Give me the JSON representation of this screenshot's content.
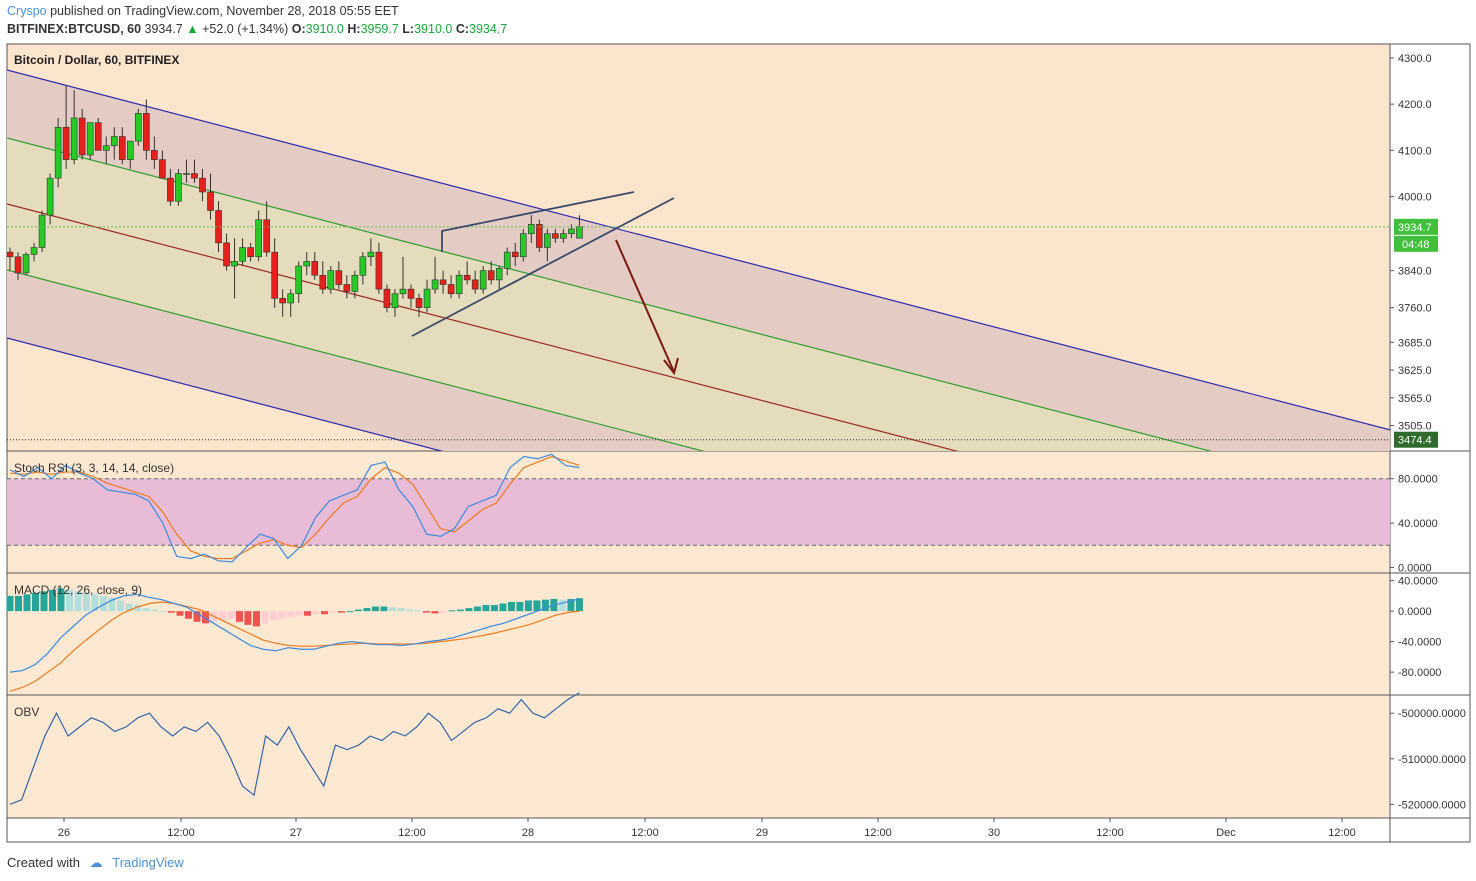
{
  "header": {
    "author": "Cryspo",
    "published_text": "published on TradingView.com, November 28, 2018 05:55 EET",
    "symbol": "BITFINEX:BTCUSD, 60",
    "last": "3934.7",
    "change": "+52.0 (+1.34%)",
    "o_label": "O:",
    "o_value": "3910.0",
    "h_label": "H:",
    "h_value": "3959.7",
    "l_label": "L:",
    "l_value": "3910.0",
    "c_label": "C:",
    "c_value": "3934.7"
  },
  "footer": {
    "created_with": "Created with",
    "brand": "TradingView"
  },
  "colors": {
    "up": "#27c927",
    "down": "#e5211c",
    "background": "#fbe5cd",
    "channel_outer": "#2b2bb0",
    "channel_inner": "#2ea02e",
    "channel_mid": "#9c2a1f",
    "stoch_k": "#3b8bdf",
    "stoch_d": "#f07a1c",
    "macd_line": "#3b8bdf",
    "signal_line": "#f07a1c",
    "obv": "#3565a8",
    "last_price_line": "#58c24e"
  },
  "chart_data": [
    {
      "type": "candlestick",
      "title": "Bitcoin / Dollar, 60, BITFINEX",
      "x_axis_labels": [
        "26",
        "12:00",
        "27",
        "12:00",
        "28",
        "12:00",
        "29",
        "12:00",
        "30",
        "12:00",
        "Dec",
        "12:00"
      ],
      "y_ticks": [
        "4300.0",
        "4200.0",
        "4100.0",
        "4000.0",
        "3840.0",
        "3760.0",
        "3685.0",
        "3625.0",
        "3565.0",
        "3505.0"
      ],
      "y_tick_values": [
        4300,
        4200,
        4100,
        4000,
        3840,
        3760,
        3685,
        3625,
        3565,
        3505
      ],
      "y_range": [
        3450,
        4330
      ],
      "last_price": 3934.7,
      "last_price_label": "3934.7",
      "countdown_label": "04:48",
      "level_line": 3474.4,
      "level_label": "3474.4",
      "candles_ohlc": [
        [
          3880,
          3890,
          3840,
          3870
        ],
        [
          3870,
          3880,
          3820,
          3835
        ],
        [
          3835,
          3880,
          3830,
          3875
        ],
        [
          3875,
          3900,
          3860,
          3890
        ],
        [
          3890,
          3970,
          3880,
          3960
        ],
        [
          3960,
          4050,
          3940,
          4040
        ],
        [
          4040,
          4170,
          4020,
          4150
        ],
        [
          4150,
          4240,
          4060,
          4080
        ],
        [
          4080,
          4230,
          4070,
          4170
        ],
        [
          4170,
          4190,
          4080,
          4090
        ],
        [
          4090,
          4150,
          4080,
          4160
        ],
        [
          4160,
          4170,
          4100,
          4100
        ],
        [
          4100,
          4130,
          4070,
          4110
        ],
        [
          4110,
          4150,
          4080,
          4130
        ],
        [
          4130,
          4150,
          4070,
          4080
        ],
        [
          4080,
          4120,
          4060,
          4120
        ],
        [
          4120,
          4190,
          4110,
          4180
        ],
        [
          4180,
          4210,
          4080,
          4100
        ],
        [
          4100,
          4130,
          4060,
          4080
        ],
        [
          4080,
          4100,
          4040,
          4040
        ],
        [
          4040,
          4060,
          3980,
          3990
        ],
        [
          3990,
          4060,
          3980,
          4050
        ],
        [
          4050,
          4080,
          4030,
          4050
        ],
        [
          4050,
          4080,
          4030,
          4040
        ],
        [
          4040,
          4060,
          3990,
          4010
        ],
        [
          4010,
          4050,
          3950,
          3970
        ],
        [
          3970,
          3990,
          3880,
          3900
        ],
        [
          3900,
          3920,
          3840,
          3850
        ],
        [
          3850,
          3910,
          3780,
          3860
        ],
        [
          3860,
          3910,
          3850,
          3890
        ],
        [
          3890,
          3900,
          3860,
          3870
        ],
        [
          3870,
          3970,
          3860,
          3950
        ],
        [
          3950,
          3990,
          3870,
          3880
        ],
        [
          3880,
          3910,
          3760,
          3780
        ],
        [
          3780,
          3800,
          3740,
          3770
        ],
        [
          3770,
          3800,
          3740,
          3790
        ],
        [
          3790,
          3860,
          3770,
          3850
        ],
        [
          3850,
          3880,
          3830,
          3860
        ],
        [
          3860,
          3880,
          3820,
          3830
        ],
        [
          3830,
          3860,
          3790,
          3800
        ],
        [
          3800,
          3850,
          3790,
          3840
        ],
        [
          3840,
          3860,
          3800,
          3810
        ],
        [
          3810,
          3830,
          3780,
          3795
        ],
        [
          3795,
          3840,
          3780,
          3830
        ],
        [
          3830,
          3880,
          3810,
          3870
        ],
        [
          3870,
          3910,
          3850,
          3880
        ],
        [
          3880,
          3900,
          3790,
          3800
        ],
        [
          3800,
          3810,
          3750,
          3760
        ],
        [
          3760,
          3800,
          3740,
          3790
        ],
        [
          3790,
          3870,
          3780,
          3800
        ],
        [
          3800,
          3810,
          3760,
          3780
        ],
        [
          3780,
          3790,
          3740,
          3760
        ],
        [
          3760,
          3820,
          3750,
          3800
        ],
        [
          3800,
          3870,
          3790,
          3820
        ],
        [
          3820,
          3840,
          3790,
          3810
        ],
        [
          3810,
          3830,
          3780,
          3790
        ],
        [
          3790,
          3840,
          3780,
          3830
        ],
        [
          3830,
          3860,
          3810,
          3820
        ],
        [
          3820,
          3840,
          3790,
          3800
        ],
        [
          3800,
          3850,
          3790,
          3840
        ],
        [
          3840,
          3860,
          3810,
          3820
        ],
        [
          3820,
          3850,
          3800,
          3845
        ],
        [
          3845,
          3890,
          3830,
          3880
        ],
        [
          3880,
          3900,
          3850,
          3870
        ],
        [
          3870,
          3930,
          3860,
          3920
        ],
        [
          3920,
          3960,
          3900,
          3940
        ],
        [
          3940,
          3950,
          3880,
          3890
        ],
        [
          3890,
          3930,
          3860,
          3920
        ],
        [
          3920,
          3930,
          3900,
          3910
        ],
        [
          3910,
          3930,
          3900,
          3920
        ],
        [
          3920,
          3940,
          3910,
          3930
        ],
        [
          3910,
          3960,
          3910,
          3935
        ]
      ]
    },
    {
      "type": "line",
      "title": "Stoch RSI (3, 3, 14, 14, close)",
      "y_ticks": [
        "80.0000",
        "40.0000",
        "0.0000"
      ],
      "y_tick_values": [
        80,
        40,
        0
      ],
      "band": [
        20,
        80
      ],
      "y_range": [
        -5,
        105
      ],
      "series": [
        {
          "name": "K",
          "values": [
            88,
            82,
            90,
            80,
            92,
            85,
            80,
            70,
            68,
            66,
            60,
            40,
            10,
            8,
            12,
            6,
            5,
            18,
            30,
            26,
            8,
            20,
            45,
            60,
            65,
            70,
            92,
            95,
            70,
            55,
            30,
            28,
            35,
            55,
            60,
            65,
            90,
            100,
            98,
            102,
            92,
            90
          ]
        },
        {
          "name": "D",
          "values": [
            85,
            84,
            86,
            84,
            86,
            86,
            82,
            76,
            72,
            68,
            64,
            50,
            30,
            15,
            10,
            8,
            8,
            15,
            22,
            25,
            20,
            18,
            30,
            45,
            58,
            64,
            80,
            90,
            85,
            75,
            55,
            35,
            32,
            42,
            52,
            58,
            75,
            90,
            95,
            100,
            96,
            92
          ]
        }
      ]
    },
    {
      "type": "bar",
      "title": "MACD (12, 26, close, 9)",
      "y_ticks": [
        "40.0000",
        "0.0000",
        "-40.0000",
        "-80.0000"
      ],
      "y_tick_values": [
        40,
        0,
        -40,
        -80
      ],
      "y_range": [
        -110,
        50
      ],
      "histogram": [
        20,
        20,
        22,
        24,
        26,
        28,
        30,
        28,
        26,
        24,
        22,
        20,
        18,
        14,
        10,
        8,
        4,
        2,
        0,
        -2,
        -6,
        -10,
        -14,
        -16,
        -14,
        -12,
        -10,
        -14,
        -18,
        -20,
        -16,
        -12,
        -10,
        -8,
        -6,
        -6,
        -4,
        -4,
        -2,
        -2,
        0,
        2,
        4,
        6,
        6,
        5,
        4,
        2,
        1,
        -2,
        -3,
        -2,
        1,
        2,
        4,
        6,
        8,
        8,
        10,
        12,
        12,
        14,
        14,
        15,
        16,
        15,
        16,
        17
      ],
      "series": [
        {
          "name": "MACD",
          "values": [
            -80,
            -78,
            -70,
            -55,
            -35,
            -20,
            -5,
            5,
            14,
            20,
            22,
            18,
            15,
            10,
            5,
            -5,
            -15,
            -25,
            -35,
            -45,
            -50,
            -52,
            -48,
            -50,
            -50,
            -46,
            -42,
            -40,
            -42,
            -44,
            -44,
            -45,
            -43,
            -40,
            -38,
            -35,
            -30,
            -25,
            -20,
            -16,
            -10,
            -4,
            2,
            8,
            12,
            16
          ]
        },
        {
          "name": "Signal",
          "values": [
            -105,
            -100,
            -92,
            -80,
            -68,
            -52,
            -38,
            -25,
            -12,
            -2,
            5,
            10,
            12,
            10,
            6,
            2,
            -6,
            -14,
            -22,
            -30,
            -38,
            -42,
            -45,
            -46,
            -46,
            -45,
            -44,
            -43,
            -42,
            -43,
            -43,
            -43,
            -43,
            -42,
            -40,
            -38,
            -36,
            -33,
            -30,
            -26,
            -22,
            -18,
            -12,
            -6,
            -2,
            0
          ]
        }
      ]
    },
    {
      "type": "line",
      "title": "OBV",
      "y_ticks": [
        "-500000.0000",
        "-510000.0000",
        "-520000.0000"
      ],
      "y_tick_values": [
        -500000,
        -510000,
        -520000
      ],
      "y_range": [
        -523000,
        -496000
      ],
      "series": [
        {
          "name": "OBV",
          "values": [
            -520000,
            -519000,
            -512000,
            -505000,
            -500000,
            -505000,
            -503000,
            -501000,
            -502000,
            -504000,
            -503000,
            -501000,
            -500000,
            -503000,
            -505000,
            -503000,
            -504000,
            -502000,
            -505000,
            -510000,
            -516000,
            -518000,
            -505000,
            -507000,
            -503000,
            -508000,
            -512000,
            -516000,
            -507000,
            -508000,
            -507000,
            -505000,
            -506000,
            -504000,
            -505000,
            -503000,
            -500000,
            -502000,
            -506000,
            -504000,
            -502000,
            -501000,
            -499000,
            -500000,
            -497000,
            -500000,
            -501000,
            -499000,
            -497000,
            -495500
          ]
        }
      ]
    }
  ]
}
